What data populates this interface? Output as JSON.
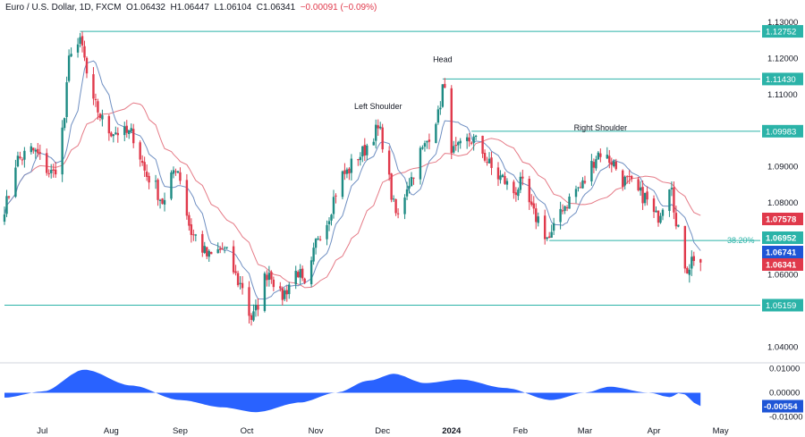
{
  "header": {
    "symbol": "Euro / U.S. Dollar, 1D, FXCM",
    "open": "O1.06432",
    "high": "H1.06447",
    "low": "L1.06104",
    "close": "C1.06341",
    "change": "−0.00091 (−0.09%)"
  },
  "colors": {
    "up": "#1e8b84",
    "down": "#e0394b",
    "ma_fast": "#6f8fc2",
    "ma_slow": "#e57a86",
    "level_line": "#2bb3a8",
    "osc_fill": "#2962ff",
    "price_tag": "#1e55d6"
  },
  "chart_data": [
    {
      "type": "candlestick",
      "title": "",
      "y_range": [
        1.0366,
        1.1315
      ],
      "y_ticks": [
        "1.13000",
        "1.12000",
        "1.11000",
        "1.09000",
        "1.08000",
        "1.06000",
        "1.04000"
      ],
      "x_labels": [
        "Jul",
        "Aug",
        "Sep",
        "Oct",
        "Nov",
        "Dec",
        "2024",
        "Feb",
        "Mar",
        "Apr",
        "May"
      ],
      "x_range": [
        "2023-06-14",
        "2024-05-10"
      ],
      "ohlc_anchors": [
        [
          "2023-06-14",
          1.079
        ],
        [
          "2023-06-20",
          1.092
        ],
        [
          "2023-06-26",
          1.0945
        ],
        [
          "2023-07-06",
          1.088
        ],
        [
          "2023-07-10",
          1.1
        ],
        [
          "2023-07-14",
          1.123
        ],
        [
          "2023-07-18",
          1.124
        ],
        [
          "2023-07-24",
          1.107
        ],
        [
          "2023-07-31",
          1.1
        ],
        [
          "2023-08-10",
          1.099
        ],
        [
          "2023-08-18",
          1.087
        ],
        [
          "2023-08-25",
          1.08
        ],
        [
          "2023-08-30",
          1.09
        ],
        [
          "2023-09-07",
          1.071
        ],
        [
          "2023-09-14",
          1.065
        ],
        [
          "2023-09-20",
          1.067
        ],
        [
          "2023-09-29",
          1.057
        ],
        [
          "2023-10-03",
          1.048
        ],
        [
          "2023-10-11",
          1.061
        ],
        [
          "2023-10-16",
          1.054
        ],
        [
          "2023-10-24",
          1.061
        ],
        [
          "2023-10-27",
          1.056
        ],
        [
          "2023-11-03",
          1.072
        ],
        [
          "2023-11-14",
          1.088
        ],
        [
          "2023-11-20",
          1.093
        ],
        [
          "2023-11-29",
          1.1
        ],
        [
          "2023-12-08",
          1.076
        ],
        [
          "2023-12-13",
          1.086
        ],
        [
          "2023-12-18",
          1.094
        ],
        [
          "2023-12-26",
          1.104
        ],
        [
          "2023-12-28",
          1.112
        ],
        [
          "2024-01-02",
          1.094
        ],
        [
          "2024-01-10",
          1.0975
        ],
        [
          "2024-01-23",
          1.087
        ],
        [
          "2024-01-29",
          1.083
        ],
        [
          "2024-02-01",
          1.085
        ],
        [
          "2024-02-08",
          1.076
        ],
        [
          "2024-02-14",
          1.07
        ],
        [
          "2024-02-20",
          1.079
        ],
        [
          "2024-02-27",
          1.084
        ],
        [
          "2024-03-08",
          1.094
        ],
        [
          "2024-03-12",
          1.092
        ],
        [
          "2024-03-19",
          1.086
        ],
        [
          "2024-03-27",
          1.082
        ],
        [
          "2024-04-02",
          1.076
        ],
        [
          "2024-04-09",
          1.086
        ],
        [
          "2024-04-11",
          1.073
        ],
        [
          "2024-04-16",
          1.062
        ],
        [
          "2024-04-19",
          1.065
        ],
        [
          "2024-04-22",
          1.0634
        ]
      ],
      "last_bar": {
        "open": 1.06432,
        "high": 1.06447,
        "low": 1.06104,
        "close": 1.06341
      },
      "series": [
        {
          "kind": "moving-average-fast"
        },
        {
          "kind": "moving-average-slow"
        }
      ],
      "levels": [
        {
          "value": 1.12752,
          "label": "1.12752",
          "from": "2023-07-18"
        },
        {
          "value": 1.1143,
          "label": "1.11430",
          "from": "2023-12-28"
        },
        {
          "value": 1.09983,
          "label": "1.09983",
          "from": "2024-01-10"
        },
        {
          "value": 1.06952,
          "label": "1.06952",
          "from": "2024-02-14"
        },
        {
          "value": 1.05159,
          "label": "1.05159",
          "from": "2023-06-14"
        }
      ],
      "price_tags": [
        {
          "value": 1.07578,
          "label": "1.07578",
          "color": "#e0394b"
        },
        {
          "value": 1.06952,
          "label": "1.06952",
          "color": "#2bb3a8"
        },
        {
          "value": 1.06741,
          "label": "1.06741",
          "color": "#1e55d6"
        },
        {
          "value": 1.06341,
          "label": "1.06341",
          "color": "#e0394b"
        }
      ],
      "fib_label": "38.20%",
      "annotations": [
        {
          "text": "Left Shoulder",
          "date": "2023-11-29",
          "value": 1.106
        },
        {
          "text": "Head",
          "date": "2023-12-28",
          "value": 1.119
        },
        {
          "text": "Right Shoulder",
          "date": "2024-03-08",
          "value": 1.1
        }
      ]
    },
    {
      "type": "area",
      "title": "",
      "y_ticks": [
        "0.01000",
        "0.00000",
        "-0.01000"
      ],
      "y_range": [
        -0.0105,
        0.0105
      ],
      "current_value": "-0.00554",
      "values_anchors": [
        [
          "2023-06-14",
          -0.002
        ],
        [
          "2023-07-01",
          0.0005
        ],
        [
          "2023-07-20",
          0.0095
        ],
        [
          "2023-08-10",
          0.003
        ],
        [
          "2023-09-01",
          -0.003
        ],
        [
          "2023-09-20",
          -0.006
        ],
        [
          "2023-10-05",
          -0.008
        ],
        [
          "2023-10-25",
          -0.004
        ],
        [
          "2023-11-10",
          0.0
        ],
        [
          "2023-11-25",
          0.005
        ],
        [
          "2023-12-06",
          0.0078
        ],
        [
          "2023-12-20",
          0.004
        ],
        [
          "2024-01-05",
          0.0055
        ],
        [
          "2024-01-25",
          0.002
        ],
        [
          "2024-02-15",
          -0.003
        ],
        [
          "2024-03-01",
          0.0
        ],
        [
          "2024-03-12",
          0.0025
        ],
        [
          "2024-03-30",
          0.0
        ],
        [
          "2024-04-08",
          -0.0018
        ],
        [
          "2024-04-13",
          0.0
        ],
        [
          "2024-04-22",
          -0.0055
        ]
      ]
    }
  ]
}
